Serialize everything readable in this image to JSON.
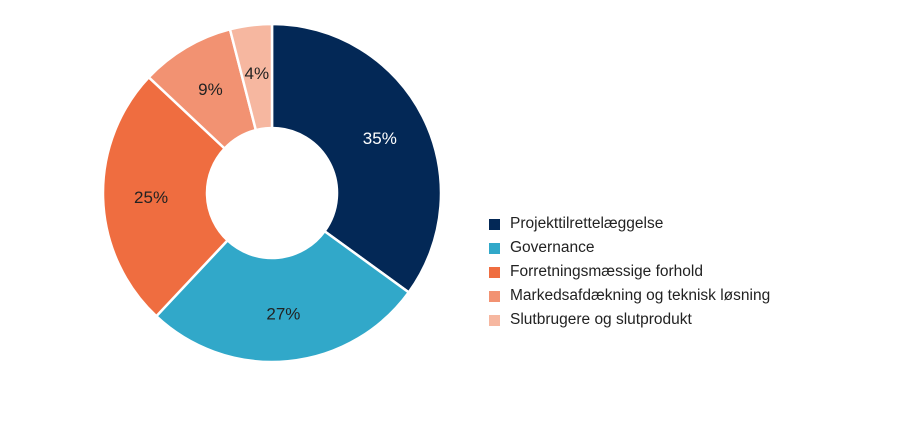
{
  "chart_data": {
    "type": "pie",
    "variant": "donut",
    "title": "",
    "categories": [
      "Projekttilrettelæggelse",
      "Governance",
      "Forretningsmæssige forhold",
      "Markedsafdækning og teknisk løsning",
      "Slutbrugere og slutprodukt"
    ],
    "values": [
      35,
      27,
      25,
      9,
      4
    ],
    "labels": [
      "35%",
      "27%",
      "25%",
      "9%",
      "4%"
    ],
    "colors": [
      "#032856",
      "#31a8c9",
      "#ef6d40",
      "#f29272",
      "#f6b7a0"
    ],
    "label_colors": [
      "#ffffff",
      "#222222",
      "#222222",
      "#222222",
      "#222222"
    ],
    "legend_position": "right",
    "start_angle": "12 o'clock, clockwise"
  },
  "legend": {
    "items": [
      {
        "label": "Projekttilrettelæggelse",
        "color": "#032856"
      },
      {
        "label": "Governance",
        "color": "#31a8c9"
      },
      {
        "label": "Forretningsmæssige forhold",
        "color": "#ef6d40"
      },
      {
        "label": "Markedsafdækning og teknisk løsning",
        "color": "#f29272"
      },
      {
        "label": "Slutbrugere og slutprodukt",
        "color": "#f6b7a0"
      }
    ]
  }
}
